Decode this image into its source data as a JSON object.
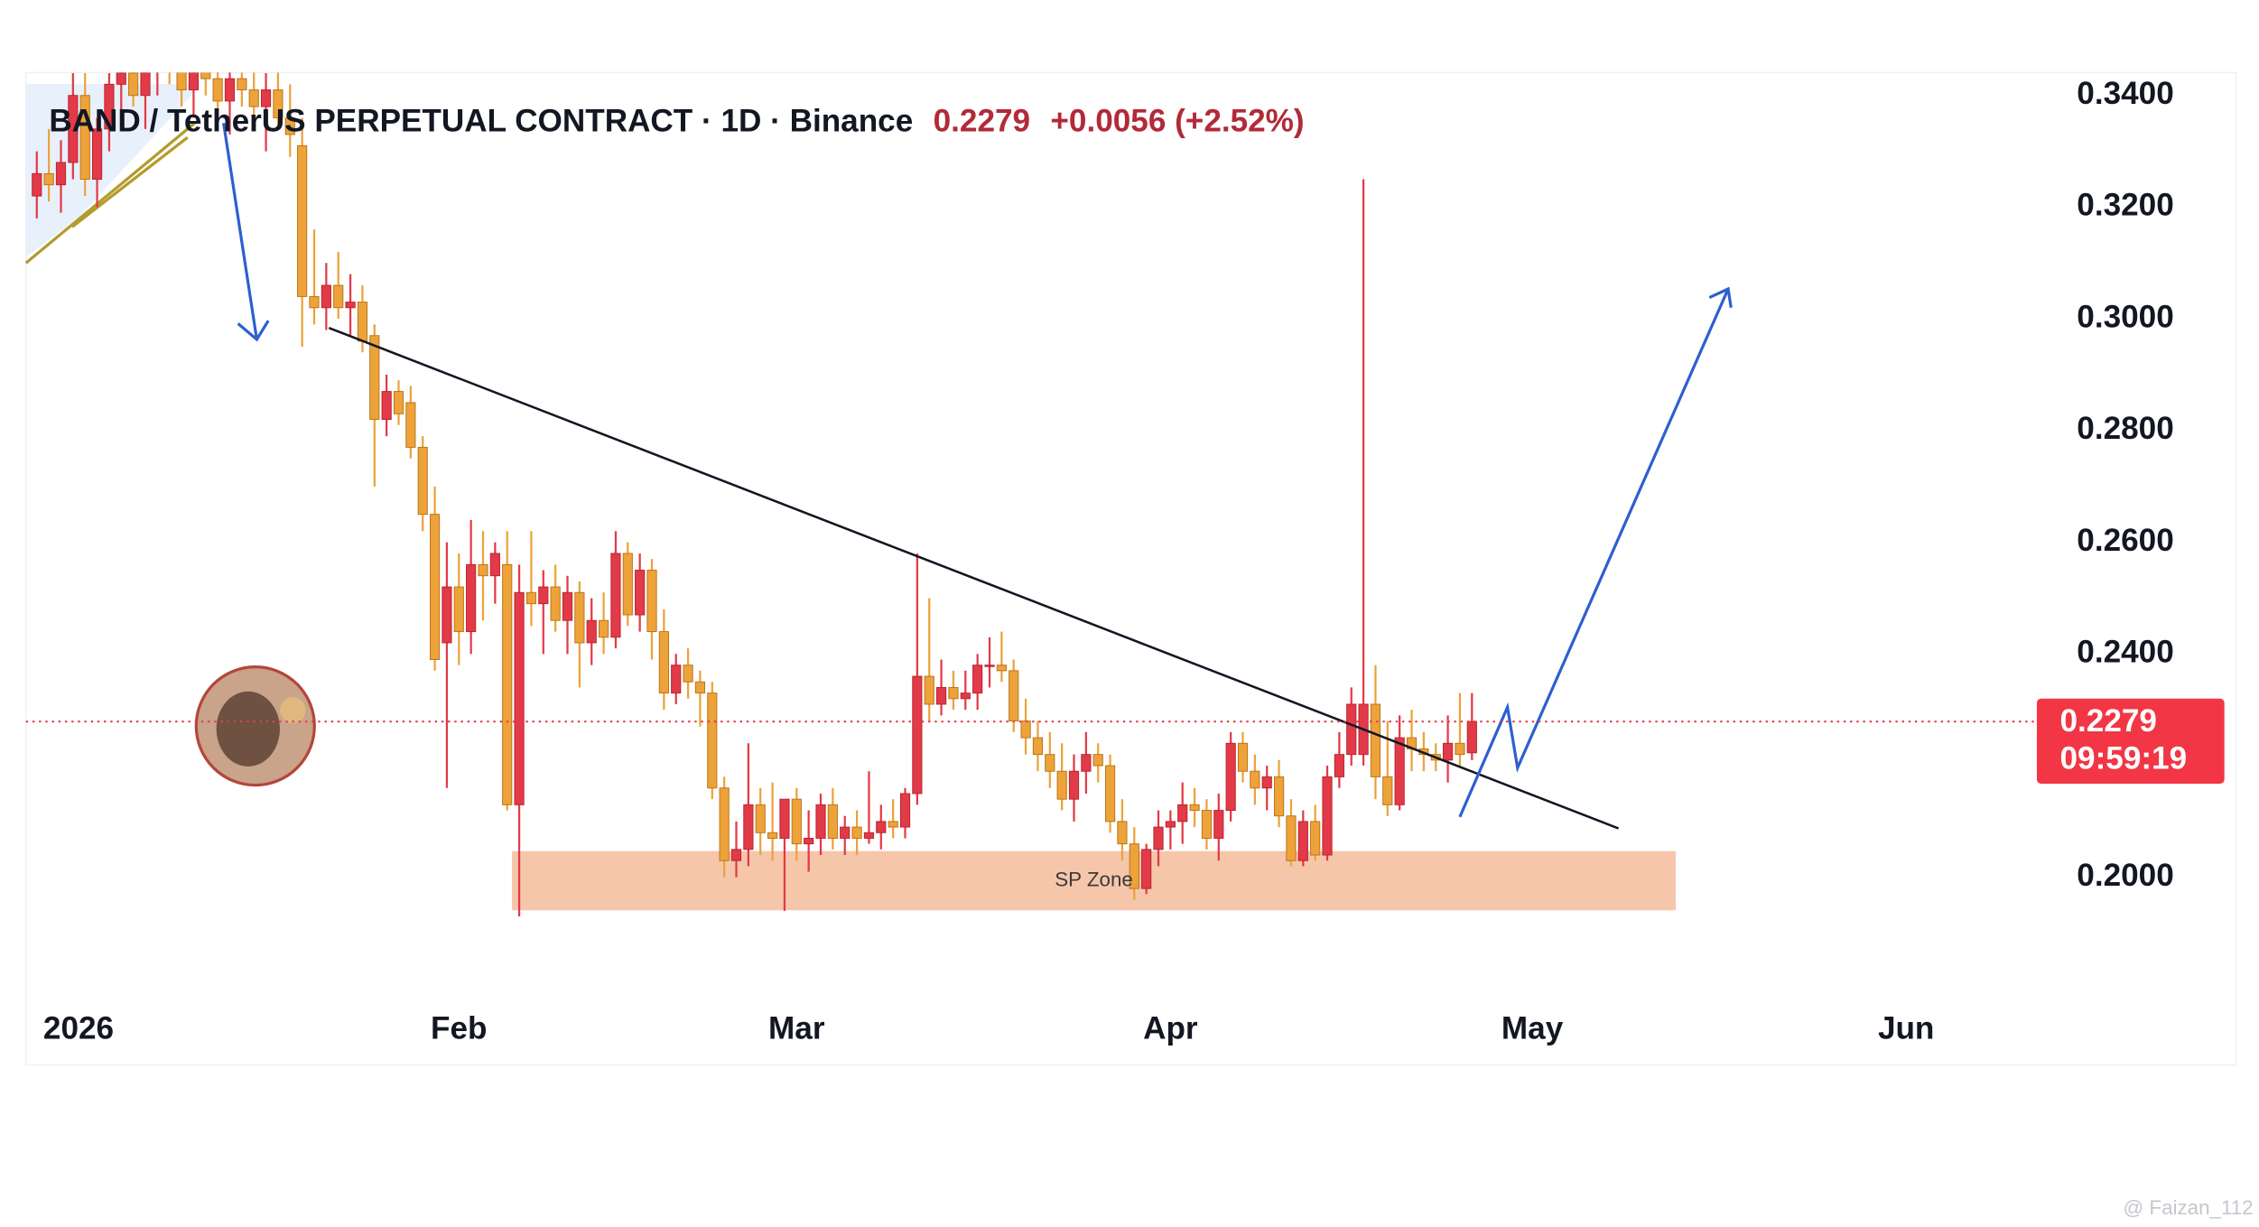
{
  "chart_data": {
    "type": "candlestick",
    "title": "BAND / TetherUS PERPETUAL CONTRACT · 1D · Binance",
    "last_price": 0.2279,
    "change": "+0.0056 (+2.52%)",
    "countdown": "09:59:19",
    "up_color": "#e23a48",
    "down_color": "#eda23a",
    "xlim": [
      -3.9,
      162.6
    ],
    "ylim": [
      0.1788,
      0.3441
    ],
    "xticks": [
      {
        "value": 1,
        "label": "2026"
      },
      {
        "value": 32,
        "label": "Feb"
      },
      {
        "value": 60,
        "label": "Mar"
      },
      {
        "value": 91,
        "label": "Apr"
      },
      {
        "value": 121,
        "label": "May"
      },
      {
        "value": 152,
        "label": "Jun"
      }
    ],
    "yticks": [
      {
        "value": 0.34,
        "label": "0.3400"
      },
      {
        "value": 0.32,
        "label": "0.3200"
      },
      {
        "value": 0.3,
        "label": "0.3000"
      },
      {
        "value": 0.28,
        "label": "0.2800"
      },
      {
        "value": 0.26,
        "label": "0.2600"
      },
      {
        "value": 0.24,
        "label": "0.2400"
      },
      {
        "value": 0.2,
        "label": "0.2000"
      }
    ],
    "zone": {
      "label": "SP Zone",
      "top": 0.2047,
      "bottom": 0.1941,
      "x0": 36.4,
      "x1": 132.9
    },
    "x": [
      -3,
      -2,
      -1,
      0,
      1,
      2,
      3,
      4,
      5,
      6,
      7,
      8,
      9,
      10,
      11,
      12,
      13,
      14,
      15,
      16,
      17,
      18,
      19,
      20,
      21,
      22,
      23,
      24,
      25,
      26,
      27,
      28,
      29,
      30,
      31,
      32,
      33,
      34,
      35,
      36,
      37,
      38,
      39,
      40,
      41,
      42,
      43,
      44,
      45,
      46,
      47,
      48,
      49,
      50,
      51,
      52,
      53,
      54,
      55,
      56,
      57,
      58,
      59,
      60,
      61,
      62,
      63,
      64,
      65,
      66,
      67,
      68,
      69,
      70,
      71,
      72,
      73,
      74,
      75,
      76,
      77,
      78,
      79,
      80,
      81,
      82,
      83,
      84,
      85,
      86,
      87,
      88,
      89,
      90,
      91,
      92,
      93,
      94,
      95,
      96,
      97,
      98,
      99,
      100,
      101,
      102,
      103,
      104,
      105,
      106,
      107,
      108,
      109,
      110,
      111,
      112,
      113,
      114,
      115,
      116
    ],
    "open": [
      0.322,
      0.326,
      0.324,
      0.328,
      0.34,
      0.325,
      0.334,
      0.342,
      0.344,
      0.34,
      0.345,
      0.348,
      0.346,
      0.341,
      0.347,
      0.343,
      0.339,
      0.343,
      0.341,
      0.338,
      0.341,
      0.336,
      0.331,
      0.304,
      0.302,
      0.306,
      0.302,
      0.303,
      0.297,
      0.282,
      0.287,
      0.285,
      0.277,
      0.265,
      0.242,
      0.252,
      0.244,
      0.256,
      0.254,
      0.256,
      0.213,
      0.251,
      0.249,
      0.252,
      0.246,
      0.251,
      0.242,
      0.246,
      0.243,
      0.258,
      0.247,
      0.255,
      0.244,
      0.233,
      0.238,
      0.235,
      0.233,
      0.216,
      0.203,
      0.205,
      0.213,
      0.208,
      0.207,
      0.214,
      0.206,
      0.207,
      0.213,
      0.207,
      0.209,
      0.207,
      0.208,
      0.21,
      0.209,
      0.215,
      0.236,
      0.231,
      0.234,
      0.232,
      0.233,
      0.238,
      0.238,
      0.237,
      0.228,
      0.225,
      0.222,
      0.219,
      0.214,
      0.219,
      0.222,
      0.22,
      0.21,
      0.206,
      0.198,
      0.205,
      0.209,
      0.21,
      0.213,
      0.212,
      0.207,
      0.212,
      0.224,
      0.219,
      0.216,
      0.218,
      0.211,
      0.203,
      0.21,
      0.204,
      0.218,
      0.222,
      0.222,
      0.231,
      0.218,
      0.213,
      0.225,
      0.223,
      0.222,
      0.221,
      0.224,
      0.2223
    ],
    "high": [
      0.33,
      0.334,
      0.332,
      0.344,
      0.344,
      0.336,
      0.344,
      0.346,
      0.35,
      0.348,
      0.352,
      0.355,
      0.352,
      0.349,
      0.353,
      0.35,
      0.346,
      0.349,
      0.347,
      0.344,
      0.346,
      0.342,
      0.336,
      0.316,
      0.31,
      0.312,
      0.308,
      0.306,
      0.299,
      0.29,
      0.289,
      0.288,
      0.279,
      0.27,
      0.26,
      0.258,
      0.264,
      0.262,
      0.26,
      0.262,
      0.256,
      0.262,
      0.255,
      0.256,
      0.254,
      0.253,
      0.25,
      0.251,
      0.262,
      0.26,
      0.258,
      0.257,
      0.248,
      0.24,
      0.241,
      0.237,
      0.235,
      0.218,
      0.21,
      0.224,
      0.216,
      0.217,
      0.214,
      0.216,
      0.212,
      0.215,
      0.216,
      0.211,
      0.212,
      0.219,
      0.213,
      0.214,
      0.216,
      0.258,
      0.25,
      0.239,
      0.237,
      0.237,
      0.24,
      0.243,
      0.244,
      0.239,
      0.232,
      0.228,
      0.226,
      0.224,
      0.222,
      0.226,
      0.224,
      0.222,
      0.214,
      0.209,
      0.206,
      0.212,
      0.212,
      0.217,
      0.216,
      0.214,
      0.215,
      0.226,
      0.226,
      0.222,
      0.22,
      0.221,
      0.214,
      0.212,
      0.213,
      0.22,
      0.226,
      0.234,
      0.325,
      0.238,
      0.228,
      0.229,
      0.23,
      0.226,
      0.224,
      0.229,
      0.233,
      0.233
    ],
    "low": [
      0.318,
      0.321,
      0.319,
      0.325,
      0.322,
      0.32,
      0.33,
      0.336,
      0.338,
      0.334,
      0.34,
      0.342,
      0.338,
      0.336,
      0.34,
      0.337,
      0.333,
      0.338,
      0.334,
      0.33,
      0.334,
      0.329,
      0.295,
      0.299,
      0.298,
      0.3,
      0.297,
      0.294,
      0.27,
      0.279,
      0.281,
      0.275,
      0.262,
      0.237,
      0.216,
      0.238,
      0.24,
      0.246,
      0.249,
      0.212,
      0.193,
      0.245,
      0.24,
      0.244,
      0.24,
      0.234,
      0.238,
      0.24,
      0.241,
      0.245,
      0.244,
      0.239,
      0.23,
      0.231,
      0.232,
      0.227,
      0.214,
      0.2,
      0.2,
      0.202,
      0.204,
      0.203,
      0.194,
      0.203,
      0.201,
      0.204,
      0.205,
      0.204,
      0.204,
      0.206,
      0.205,
      0.207,
      0.207,
      0.213,
      0.228,
      0.229,
      0.23,
      0.23,
      0.23,
      0.234,
      0.235,
      0.226,
      0.222,
      0.219,
      0.216,
      0.212,
      0.21,
      0.215,
      0.217,
      0.208,
      0.203,
      0.196,
      0.197,
      0.202,
      0.205,
      0.206,
      0.209,
      0.205,
      0.203,
      0.21,
      0.217,
      0.213,
      0.212,
      0.209,
      0.202,
      0.202,
      0.203,
      0.203,
      0.216,
      0.22,
      0.22,
      0.214,
      0.211,
      0.212,
      0.219,
      0.219,
      0.219,
      0.217,
      0.22,
      0.221
    ],
    "close": [
      0.326,
      0.324,
      0.328,
      0.34,
      0.325,
      0.334,
      0.342,
      0.344,
      0.34,
      0.345,
      0.348,
      0.346,
      0.341,
      0.347,
      0.343,
      0.339,
      0.343,
      0.341,
      0.338,
      0.341,
      0.336,
      0.333,
      0.304,
      0.302,
      0.306,
      0.302,
      0.303,
      0.296,
      0.282,
      0.287,
      0.283,
      0.277,
      0.265,
      0.239,
      0.252,
      0.244,
      0.256,
      0.254,
      0.258,
      0.213,
      0.251,
      0.249,
      0.252,
      0.246,
      0.251,
      0.242,
      0.246,
      0.243,
      0.258,
      0.247,
      0.255,
      0.244,
      0.233,
      0.238,
      0.235,
      0.233,
      0.216,
      0.203,
      0.205,
      0.213,
      0.208,
      0.207,
      0.214,
      0.206,
      0.207,
      0.213,
      0.207,
      0.209,
      0.207,
      0.208,
      0.21,
      0.209,
      0.215,
      0.236,
      0.231,
      0.234,
      0.232,
      0.233,
      0.238,
      0.238,
      0.237,
      0.228,
      0.225,
      0.222,
      0.219,
      0.214,
      0.219,
      0.222,
      0.22,
      0.21,
      0.206,
      0.198,
      0.205,
      0.209,
      0.21,
      0.213,
      0.212,
      0.207,
      0.212,
      0.224,
      0.219,
      0.216,
      0.218,
      0.211,
      0.203,
      0.21,
      0.204,
      0.218,
      0.222,
      0.231,
      0.231,
      0.218,
      0.213,
      0.225,
      0.223,
      0.222,
      0.221,
      0.224,
      0.222,
      0.2279
    ]
  },
  "watermark": "@ Faizan_112"
}
